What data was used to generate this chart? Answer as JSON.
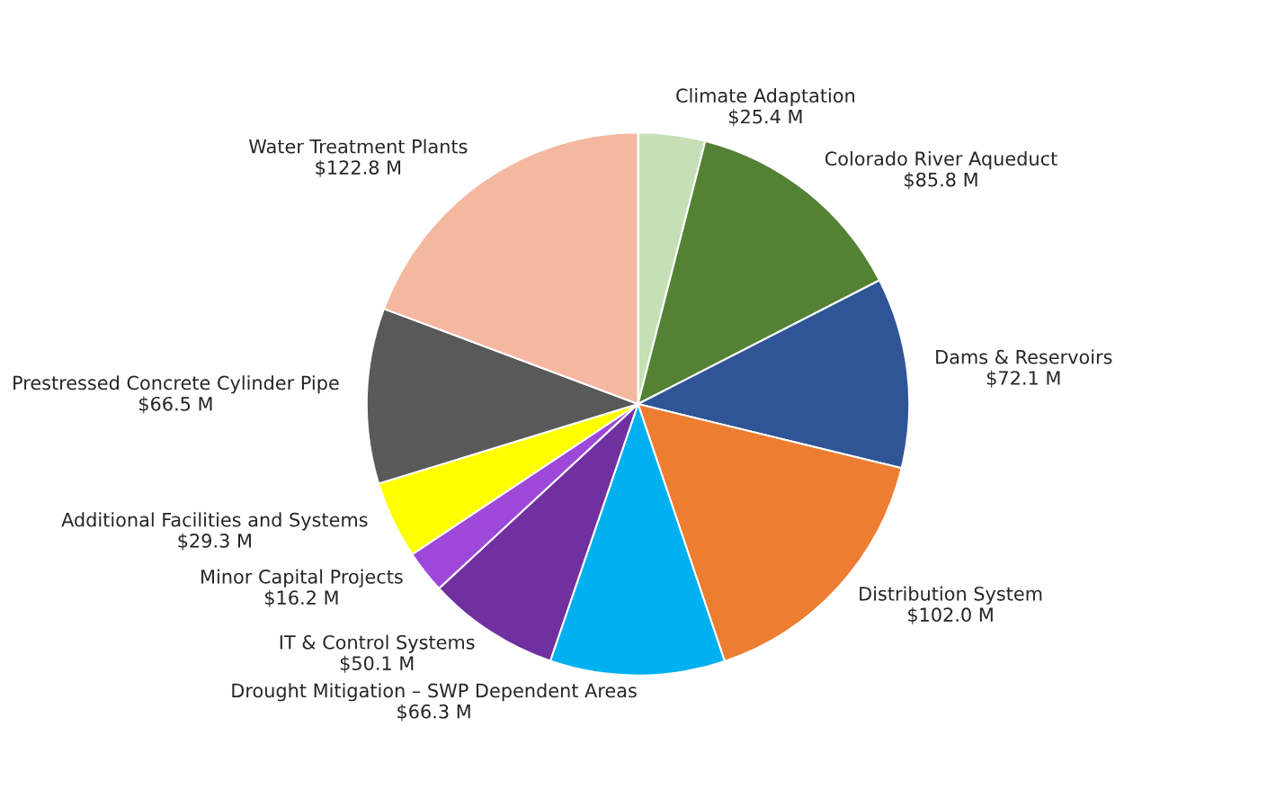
{
  "chart_data": {
    "type": "pie",
    "categories": [
      "Climate Adaptation",
      "Colorado River Aqueduct",
      "Dams & Reservoirs",
      "Distribution System",
      "Drought Mitigation – SWP Dependent Areas",
      "IT & Control Systems",
      "Minor Capital Projects",
      "Additional Facilities and Systems",
      "Prestressed Concrete Cylinder Pipe",
      "Water Treatment Plants"
    ],
    "values": [
      25.4,
      85.8,
      72.1,
      102.0,
      66.3,
      50.1,
      16.2,
      29.3,
      66.5,
      122.8
    ],
    "value_labels": [
      "$25.4 M",
      "$85.8 M",
      "$72.1 M",
      "$102.0 M",
      "$66.3 M",
      "$50.1 M",
      "$16.2 M",
      "$29.3 M",
      "$66.5 M",
      "$122.8 M"
    ],
    "colors": [
      "#c5e0b4",
      "#548235",
      "#2f5597",
      "#ed7d31",
      "#00b0f0",
      "#7030a0",
      "#9e48d9",
      "#ffff00",
      "#595959",
      "#f4b8a0"
    ],
    "legend": false
  }
}
